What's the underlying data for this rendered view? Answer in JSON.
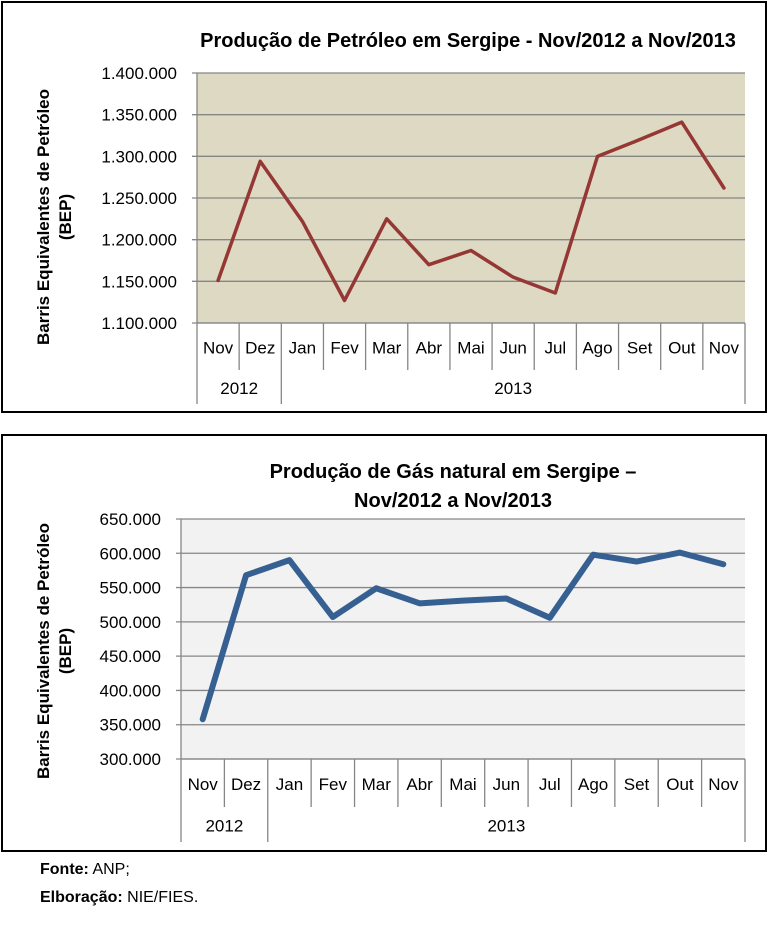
{
  "chart_data": [
    {
      "type": "line",
      "title": "Produção de Petróleo em Sergipe - Nov/2012 a Nov/2013",
      "title_lines": [
        "Produção de Petróleo em Sergipe - Nov/2012 a Nov/2013"
      ],
      "ylabel_lines": [
        "Barris Equivalentes de Petróleo",
        "(BEP)"
      ],
      "xlabel": "",
      "categories": [
        "Nov",
        "Dez",
        "Jan",
        "Fev",
        "Mar",
        "Abr",
        "Mai",
        "Jun",
        "Jul",
        "Ago",
        "Set",
        "Out",
        "Nov"
      ],
      "year_groups": [
        {
          "label": "2012",
          "span": 2
        },
        {
          "label": "2013",
          "span": 11
        }
      ],
      "ylim": [
        1100000,
        1400000
      ],
      "yticks": [
        1100000,
        1150000,
        1200000,
        1250000,
        1300000,
        1350000,
        1400000
      ],
      "ytick_labels": [
        "1.100.000",
        "1.150.000",
        "1.200.000",
        "1.250.000",
        "1.300.000",
        "1.350.000",
        "1.400.000"
      ],
      "series": [
        {
          "name": "Petróleo",
          "color": "#953735",
          "values": [
            1151000,
            1294000,
            1222000,
            1127000,
            1225000,
            1170000,
            1187000,
            1155000,
            1136000,
            1300000,
            1320000,
            1341000,
            1262000
          ]
        }
      ],
      "plot_bg": "#DDD9C3",
      "grid": true,
      "legend": "none"
    },
    {
      "type": "line",
      "title": "Produção de Gás natural em Sergipe – Nov/2012 a Nov/2013",
      "title_lines": [
        "Produção de Gás natural em Sergipe –",
        "Nov/2012 a Nov/2013"
      ],
      "ylabel_lines": [
        "Barris Equivalentes de Petróleo",
        "(BEP)"
      ],
      "xlabel": "",
      "categories": [
        "Nov",
        "Dez",
        "Jan",
        "Fev",
        "Mar",
        "Abr",
        "Mai",
        "Jun",
        "Jul",
        "Ago",
        "Set",
        "Out",
        "Nov"
      ],
      "year_groups": [
        {
          "label": "2012",
          "span": 2
        },
        {
          "label": "2013",
          "span": 11
        }
      ],
      "ylim": [
        300000,
        650000
      ],
      "yticks": [
        300000,
        350000,
        400000,
        450000,
        500000,
        550000,
        600000,
        650000
      ],
      "ytick_labels": [
        "300.000",
        "350.000",
        "400.000",
        "450.000",
        "500.000",
        "550.000",
        "600.000",
        "650.000"
      ],
      "series": [
        {
          "name": "Gás natural",
          "color": "#366092",
          "values": [
            358000,
            568000,
            590000,
            507000,
            549000,
            527000,
            531000,
            534000,
            506000,
            598000,
            588000,
            601000,
            584000
          ]
        }
      ],
      "plot_bg": "#F2F2F2",
      "grid": true,
      "legend": "none"
    }
  ],
  "footer": {
    "source_label": "Fonte:",
    "source_value": " ANP;",
    "elab_label": "Elboração:",
    "elab_value": " NIE/FIES."
  }
}
